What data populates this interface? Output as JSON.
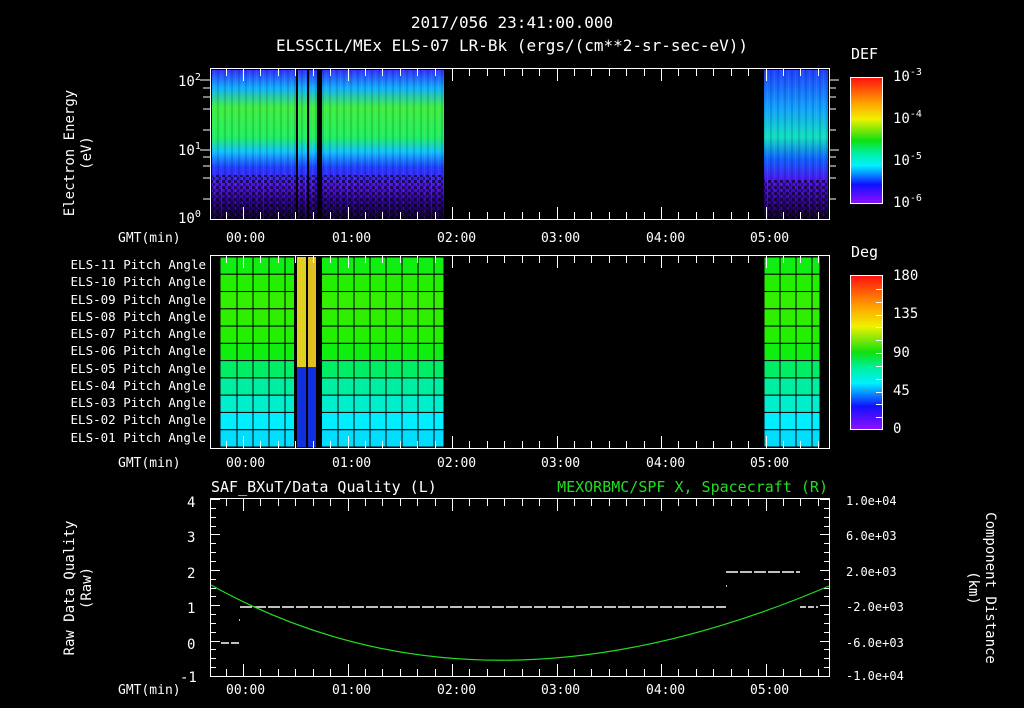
{
  "header": {
    "timestamp": "2017/056 23:41:00.000",
    "subtitle": "ELSSCIL/MEx ELS-07 LR-Bk  (ergs/(cm**2-sr-sec-eV))"
  },
  "time_axis": {
    "label": "GMT(min)",
    "ticks": [
      "00:00",
      "01:00",
      "02:00",
      "03:00",
      "04:00",
      "05:00"
    ]
  },
  "panel_energy": {
    "ylabel": "Electron Energy",
    "yunit": "(eV)",
    "yticks": [
      {
        "base": "10",
        "exp": "2"
      },
      {
        "base": "10",
        "exp": "1"
      },
      {
        "base": "10",
        "exp": "0"
      }
    ],
    "colorbar": {
      "title": "DEF",
      "ticks": [
        {
          "base": "10",
          "exp": "-3"
        },
        {
          "base": "10",
          "exp": "-4"
        },
        {
          "base": "10",
          "exp": "-5"
        },
        {
          "base": "10",
          "exp": "-6"
        }
      ]
    }
  },
  "panel_pitch": {
    "rows": [
      "ELS-11 Pitch Angle",
      "ELS-10 Pitch Angle",
      "ELS-09 Pitch Angle",
      "ELS-08 Pitch Angle",
      "ELS-07 Pitch Angle",
      "ELS-06 Pitch Angle",
      "ELS-05 Pitch Angle",
      "ELS-04 Pitch Angle",
      "ELS-03 Pitch Angle",
      "ELS-02 Pitch Angle",
      "ELS-01 Pitch Angle"
    ],
    "row_colors": [
      "#11ee11",
      "#22f000",
      "#33f000",
      "#2cf000",
      "#22f000",
      "#10ee10",
      "#00ee66",
      "#00eea0",
      "#00eecc",
      "#00eeff",
      "#00ddff"
    ],
    "colorbar": {
      "title": "Deg",
      "ticks": [
        "180",
        "135",
        "90",
        "45",
        "0"
      ]
    }
  },
  "panel_quality": {
    "title_left": "SAF_BXuT/Data Quality (L)",
    "title_right": "MEXORBMC/SPF X, Spacecraft (R)",
    "title_right_color": "#22dd22",
    "ylabel_left": "Raw Data Quality",
    "yunit_left": "(Raw)",
    "yticks_left": [
      "4",
      "3",
      "2",
      "1",
      "0",
      "-1"
    ],
    "ylabel_right": "Component Distance",
    "yunit_right": "(km)",
    "yticks_right": [
      "1.0e+04",
      "6.0e+03",
      "2.0e+03",
      "-2.0e+03",
      "-6.0e+03",
      "-1.0e+04"
    ]
  },
  "chart_data": [
    {
      "type": "heatmap",
      "title": "ELSSCIL/MEx ELS-07 LR-Bk (ergs/(cm**2-sr-sec-eV))",
      "xlabel": "GMT(min)",
      "ylabel": "Electron Energy (eV)",
      "yscale": "log",
      "ylim": [
        1,
        150
      ],
      "x_ticks": [
        "00:00",
        "01:00",
        "02:00",
        "03:00",
        "04:00",
        "05:00"
      ],
      "colorbar": {
        "label": "DEF",
        "scale": "log",
        "range": [
          1e-06,
          0.001
        ]
      },
      "data_intervals": [
        [
          "23:50",
          "01:53"
        ],
        [
          "04:57",
          "05:33"
        ]
      ],
      "gaps": [
        "00:28",
        "00:35",
        "00:41"
      ],
      "peak_band_eV": [
        20,
        80
      ],
      "peak_value": 0.0001
    },
    {
      "type": "heatmap",
      "title": "Pitch Angle",
      "xlabel": "GMT(min)",
      "categories": [
        "ELS-11",
        "ELS-10",
        "ELS-09",
        "ELS-08",
        "ELS-07",
        "ELS-06",
        "ELS-05",
        "ELS-04",
        "ELS-03",
        "ELS-02",
        "ELS-01"
      ],
      "values_deg": [
        100,
        98,
        96,
        97,
        99,
        92,
        85,
        78,
        70,
        62,
        55
      ],
      "colorbar": {
        "label": "Deg",
        "range": [
          0,
          180
        ]
      },
      "data_intervals": [
        [
          "23:50",
          "01:53"
        ],
        [
          "04:57",
          "05:33"
        ]
      ]
    },
    {
      "type": "line",
      "title": "SAF_BXuT/Data Quality (L) | MEXORBMC/SPF X, Spacecraft (R)",
      "xlabel": "GMT(min)",
      "series": [
        {
          "name": "Data Quality (L)",
          "axis": "left",
          "points": [
            [
              "23:49",
              0
            ],
            [
              "23:58",
              1
            ],
            [
              "04:35",
              1
            ],
            [
              "04:36",
              2
            ],
            [
              "05:15",
              2
            ],
            [
              "05:26",
              1
            ],
            [
              "05:33",
              1
            ]
          ]
        },
        {
          "name": "SPF X Spacecraft (R)",
          "axis": "right",
          "color": "#22dd22",
          "points": [
            [
              "23:45",
              500
            ],
            [
              "00:00",
              -1000
            ],
            [
              "00:30",
              -3500
            ],
            [
              "01:00",
              -5000
            ],
            [
              "01:30",
              -5800
            ],
            [
              "02:00",
              -6300
            ],
            [
              "02:30",
              -6300
            ],
            [
              "03:00",
              -5900
            ],
            [
              "03:30",
              -5000
            ],
            [
              "04:00",
              -3800
            ],
            [
              "04:30",
              -2200
            ],
            [
              "05:00",
              -700
            ],
            [
              "05:35",
              1500
            ]
          ]
        }
      ],
      "ylim_left": [
        -1,
        4
      ],
      "ylim_right": [
        -10000,
        10000
      ]
    }
  ]
}
